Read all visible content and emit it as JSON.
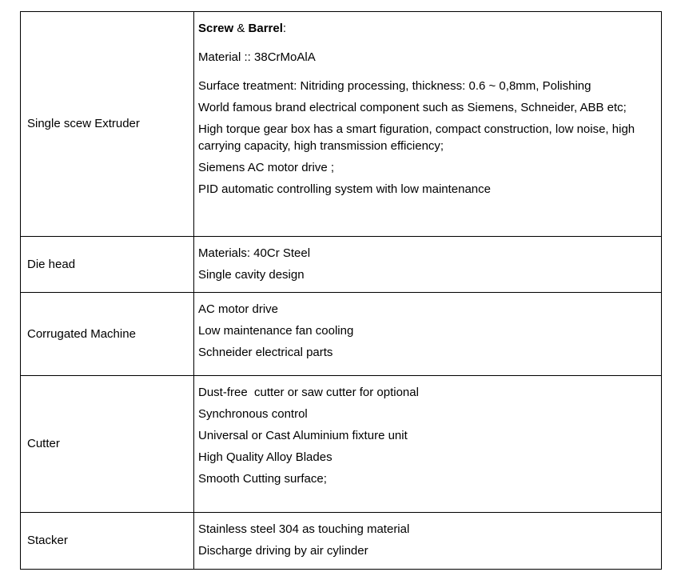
{
  "page": {
    "background_color": "#ffffff",
    "border_color": "#000000",
    "text_color": "#000000"
  },
  "table": {
    "rows": [
      {
        "label": "Single scew Extruder",
        "heading": {
          "bold_1": "Screw",
          "separator": " & ",
          "bold_2": "Barrel",
          "suffix": ":"
        },
        "paragraphs": [
          "Material :: 38CrMoAlA",
          "Surface treatment: Nitriding processing, thickness: 0.6 ~ 0,8mm, Polishing",
          "World famous brand electrical component such as Siemens, Schneider, ABB etc;",
          "High torque gear box has a smart figuration, compact construction, low noise, high carrying capacity, high transmission efficiency;",
          "Siemens AC motor drive ;",
          "PID automatic controlling system with low maintenance"
        ]
      },
      {
        "label": "Die head",
        "paragraphs": [
          "Materials: 40Cr Steel",
          "Single cavity design"
        ]
      },
      {
        "label": "Corrugated Machine",
        "paragraphs": [
          "AC motor drive",
          "Low maintenance fan cooling",
          "Schneider electrical parts"
        ]
      },
      {
        "label": "Cutter",
        "paragraphs": [
          "Dust-free  cutter or saw cutter for optional",
          "Synchronous control",
          "Universal or Cast Aluminium fixture unit",
          "High Quality Alloy Blades",
          "Smooth Cutting surface;"
        ]
      },
      {
        "label": "Stacker",
        "paragraphs": [
          "Stainless steel 304 as touching material",
          "Discharge driving by air cylinder"
        ]
      }
    ]
  }
}
